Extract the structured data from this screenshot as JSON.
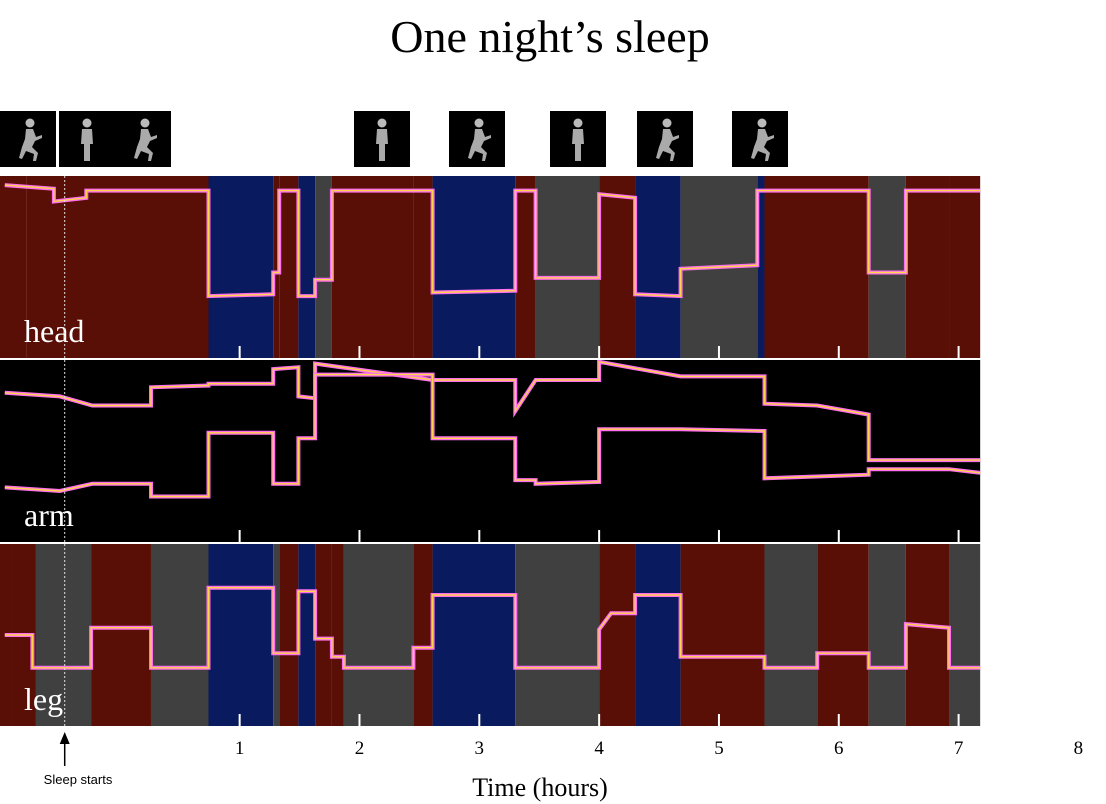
{
  "chart_data": {
    "type": "heatmap",
    "title": "One night’s sleep",
    "xlabel": "Time (hours)",
    "xlim": [
      -1.0,
      8.18
    ],
    "xticks": [
      1,
      2,
      3,
      4,
      5,
      6,
      7,
      8
    ],
    "xtick_labels": [
      "1",
      "2",
      "3",
      "4",
      "5",
      "6",
      "7",
      "8"
    ],
    "annotation": {
      "text": "Sleep starts",
      "x": -0.46
    },
    "posture_colors": {
      "A": "#5a0f06",
      "B": "#0a1a5e",
      "C": "#404040"
    },
    "trace_color": "#ff6ef0",
    "trace_highlight": "#ffd34a",
    "posture_icons": [
      {
        "pose": "curled",
        "x": -0.77
      },
      {
        "pose": "standing",
        "x": -0.27
      },
      {
        "pose": "curled",
        "x": 0.19
      },
      {
        "pose": "standing",
        "x": 2.19
      },
      {
        "pose": "curled",
        "x": 2.98
      },
      {
        "pose": "standing",
        "x": 3.82
      },
      {
        "pose": "curled",
        "x": 4.55
      },
      {
        "pose": "curled",
        "x": 5.34
      }
    ],
    "rows": [
      {
        "name": "head",
        "segments": [
          [
            -1.0,
            -0.78,
            "A"
          ],
          [
            -0.78,
            0.74,
            "A"
          ],
          [
            0.74,
            1.28,
            "B"
          ],
          [
            1.28,
            1.33,
            "A"
          ],
          [
            1.33,
            1.49,
            "A"
          ],
          [
            1.49,
            1.63,
            "B"
          ],
          [
            1.63,
            1.77,
            "C"
          ],
          [
            1.77,
            2.45,
            "A"
          ],
          [
            2.45,
            2.61,
            "A"
          ],
          [
            2.61,
            3.3,
            "B"
          ],
          [
            3.3,
            3.47,
            "A"
          ],
          [
            3.47,
            4.0,
            "C"
          ],
          [
            4.0,
            4.3,
            "A"
          ],
          [
            4.3,
            4.68,
            "B"
          ],
          [
            4.68,
            5.32,
            "C"
          ],
          [
            5.32,
            5.38,
            "B"
          ],
          [
            5.38,
            6.25,
            "A"
          ],
          [
            6.25,
            6.56,
            "C"
          ],
          [
            6.56,
            6.92,
            "A"
          ],
          [
            6.92,
            7.18,
            "A"
          ]
        ],
        "traces": [
          [
            [
              -0.96,
              0.05
            ],
            [
              -0.55,
              0.07
            ],
            [
              -0.55,
              0.14
            ],
            [
              -0.28,
              0.12
            ],
            [
              -0.28,
              0.08
            ],
            [
              0.74,
              0.08
            ],
            [
              0.74,
              0.66
            ],
            [
              1.28,
              0.65
            ],
            [
              1.28,
              0.53
            ],
            [
              1.33,
              0.53
            ],
            [
              1.33,
              0.08
            ],
            [
              1.49,
              0.08
            ],
            [
              1.49,
              0.66
            ],
            [
              1.63,
              0.66
            ],
            [
              1.63,
              0.57
            ],
            [
              1.77,
              0.57
            ],
            [
              1.77,
              0.08
            ],
            [
              2.61,
              0.08
            ],
            [
              2.61,
              0.64
            ],
            [
              3.3,
              0.63
            ],
            [
              3.3,
              0.08
            ],
            [
              3.47,
              0.08
            ],
            [
              3.47,
              0.56
            ],
            [
              4.0,
              0.56
            ],
            [
              4.0,
              0.1
            ],
            [
              4.3,
              0.12
            ],
            [
              4.3,
              0.65
            ],
            [
              4.68,
              0.66
            ],
            [
              4.68,
              0.51
            ],
            [
              5.32,
              0.49
            ],
            [
              5.32,
              0.08
            ],
            [
              6.25,
              0.08
            ],
            [
              6.25,
              0.53
            ],
            [
              6.56,
              0.53
            ],
            [
              6.56,
              0.08
            ],
            [
              7.18,
              0.08
            ]
          ]
        ]
      },
      {
        "name": "arm",
        "segments": [
          [
            -1.0,
            7.18,
            "black"
          ]
        ],
        "traces": [
          [
            [
              -0.96,
              0.18
            ],
            [
              -0.5,
              0.2
            ],
            [
              -0.23,
              0.25
            ],
            [
              0.26,
              0.25
            ],
            [
              0.26,
              0.15
            ],
            [
              0.74,
              0.14
            ],
            [
              0.74,
              0.13
            ],
            [
              1.28,
              0.13
            ],
            [
              1.28,
              0.05
            ],
            [
              1.49,
              0.04
            ],
            [
              1.49,
              0.2
            ],
            [
              1.63,
              0.21
            ],
            [
              1.63,
              0.02
            ],
            [
              2.61,
              0.11
            ],
            [
              3.3,
              0.11
            ],
            [
              3.3,
              0.28
            ],
            [
              3.47,
              0.11
            ],
            [
              4.0,
              0.11
            ],
            [
              4.0,
              0.01
            ],
            [
              4.68,
              0.09
            ],
            [
              5.38,
              0.09
            ],
            [
              5.38,
              0.24
            ],
            [
              5.82,
              0.25
            ],
            [
              6.25,
              0.3
            ],
            [
              6.25,
              0.55
            ],
            [
              7.18,
              0.55
            ]
          ],
          [
            [
              -0.96,
              0.7
            ],
            [
              -0.5,
              0.72
            ],
            [
              -0.23,
              0.68
            ],
            [
              0.26,
              0.68
            ],
            [
              0.26,
              0.75
            ],
            [
              0.74,
              0.75
            ],
            [
              0.74,
              0.4
            ],
            [
              1.28,
              0.4
            ],
            [
              1.28,
              0.68
            ],
            [
              1.49,
              0.68
            ],
            [
              1.49,
              0.43
            ],
            [
              1.63,
              0.43
            ],
            [
              1.63,
              0.08
            ],
            [
              2.61,
              0.08
            ],
            [
              2.61,
              0.43
            ],
            [
              3.3,
              0.43
            ],
            [
              3.3,
              0.66
            ],
            [
              3.47,
              0.66
            ],
            [
              3.47,
              0.68
            ],
            [
              4.0,
              0.67
            ],
            [
              4.0,
              0.38
            ],
            [
              4.68,
              0.38
            ],
            [
              5.38,
              0.39
            ],
            [
              5.38,
              0.65
            ],
            [
              6.25,
              0.63
            ],
            [
              6.25,
              0.6
            ],
            [
              6.92,
              0.6
            ],
            [
              7.18,
              0.62
            ]
          ]
        ]
      },
      {
        "name": "leg",
        "segments": [
          [
            -1.0,
            -0.9,
            "A"
          ],
          [
            -0.9,
            -0.7,
            "A"
          ],
          [
            -0.7,
            -0.24,
            "C"
          ],
          [
            -0.24,
            0.26,
            "A"
          ],
          [
            0.26,
            0.74,
            "C"
          ],
          [
            0.74,
            1.28,
            "B"
          ],
          [
            1.28,
            1.33,
            "C"
          ],
          [
            1.33,
            1.49,
            "A"
          ],
          [
            1.49,
            1.63,
            "B"
          ],
          [
            1.63,
            1.77,
            "A"
          ],
          [
            1.77,
            1.87,
            "A"
          ],
          [
            1.87,
            2.45,
            "C"
          ],
          [
            2.45,
            2.61,
            "A"
          ],
          [
            2.61,
            3.3,
            "B"
          ],
          [
            3.3,
            4.0,
            "C"
          ],
          [
            4.0,
            4.3,
            "A"
          ],
          [
            4.3,
            4.68,
            "B"
          ],
          [
            4.68,
            5.38,
            "A"
          ],
          [
            5.38,
            5.82,
            "C"
          ],
          [
            5.82,
            6.25,
            "A"
          ],
          [
            6.25,
            6.56,
            "C"
          ],
          [
            6.56,
            6.92,
            "A"
          ],
          [
            6.92,
            7.18,
            "C"
          ]
        ],
        "traces": [
          [
            [
              -0.96,
              0.5
            ],
            [
              -0.73,
              0.5
            ],
            [
              -0.73,
              0.68
            ],
            [
              -0.24,
              0.68
            ],
            [
              -0.24,
              0.46
            ],
            [
              0.26,
              0.46
            ],
            [
              0.26,
              0.68
            ],
            [
              0.74,
              0.68
            ],
            [
              0.74,
              0.24
            ],
            [
              1.28,
              0.24
            ],
            [
              1.28,
              0.6
            ],
            [
              1.49,
              0.6
            ],
            [
              1.49,
              0.26
            ],
            [
              1.63,
              0.26
            ],
            [
              1.63,
              0.52
            ],
            [
              1.77,
              0.52
            ],
            [
              1.77,
              0.62
            ],
            [
              1.87,
              0.62
            ],
            [
              1.87,
              0.68
            ],
            [
              2.45,
              0.68
            ],
            [
              2.45,
              0.57
            ],
            [
              2.61,
              0.57
            ],
            [
              2.61,
              0.28
            ],
            [
              3.3,
              0.28
            ],
            [
              3.3,
              0.68
            ],
            [
              4.0,
              0.68
            ],
            [
              4.0,
              0.47
            ],
            [
              4.1,
              0.38
            ],
            [
              4.3,
              0.38
            ],
            [
              4.3,
              0.28
            ],
            [
              4.68,
              0.28
            ],
            [
              4.68,
              0.62
            ],
            [
              5.38,
              0.62
            ],
            [
              5.38,
              0.68
            ],
            [
              5.82,
              0.68
            ],
            [
              5.82,
              0.6
            ],
            [
              6.25,
              0.6
            ],
            [
              6.25,
              0.68
            ],
            [
              6.56,
              0.68
            ],
            [
              6.56,
              0.44
            ],
            [
              6.92,
              0.46
            ],
            [
              6.92,
              0.68
            ],
            [
              7.18,
              0.68
            ]
          ]
        ]
      }
    ]
  }
}
